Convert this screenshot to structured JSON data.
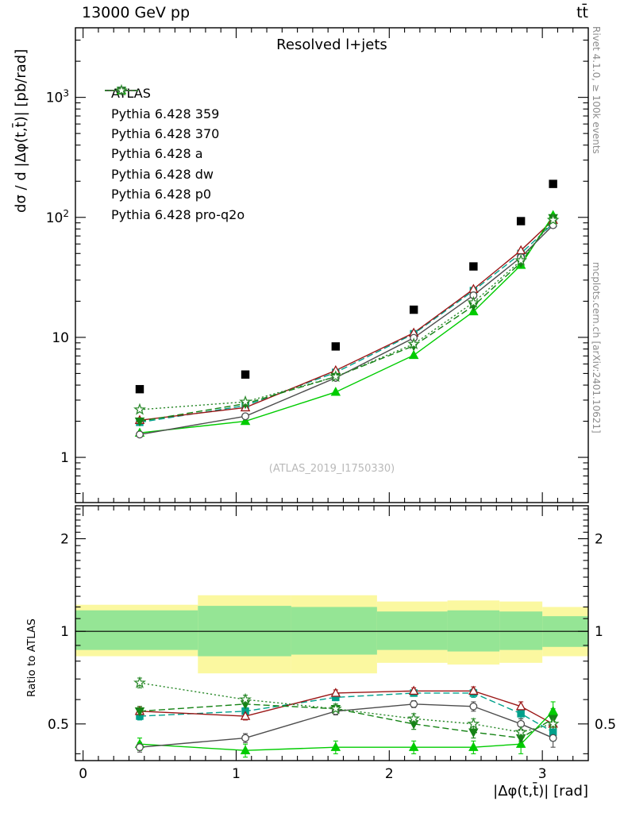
{
  "header": {
    "beam": "13000 GeV pp",
    "process": "tt̄"
  },
  "side_captions": {
    "right_top": "Rivet 4.1.0, ≥ 100k events",
    "right_bottom": "mcplots.cern.ch [arXiv:2401.10621]"
  },
  "watermark": "(ATLAS_2019_I1750330)",
  "chart_data": {
    "type": "line",
    "title": "Resolved l+jets",
    "xlabel": "|Δφ(t,t̄)| [rad]",
    "ylabel_top": "dσ / d |Δφ(t,t̄)| [pb/rad]",
    "ylabel_ratio": "Ratio to ATLAS",
    "yscale": "log",
    "xlim": [
      -0.05,
      3.3
    ],
    "ylim_top": [
      0.42,
      3800
    ],
    "ylim_ratio": [
      0.38,
      2.56
    ],
    "legend_position": "top-left",
    "x": [
      0.37,
      1.06,
      1.65,
      2.16,
      2.55,
      2.86,
      3.07
    ],
    "bin_edges": [
      0.0,
      0.75,
      1.36,
      1.92,
      2.38,
      2.72,
      3.0,
      3.1416
    ],
    "series": [
      {
        "name": "atlas",
        "label": "ATLAS",
        "color": "#000000",
        "marker": "square",
        "filled": true,
        "line": "none",
        "y": [
          3.7,
          4.9,
          8.4,
          17,
          39,
          93,
          190
        ]
      },
      {
        "name": "pythia-359",
        "label": "Pythia 6.428 359",
        "color": "#00A08B",
        "marker": "square",
        "filled": true,
        "line": "dashed",
        "y": [
          1.96,
          2.7,
          5.1,
          10.7,
          24.5,
          50,
          89
        ],
        "ratio": [
          0.53,
          0.55,
          0.61,
          0.63,
          0.63,
          0.54,
          0.47
        ],
        "ratio_err": [
          0.015,
          0.015,
          0.015,
          0.015,
          0.02,
          0.02,
          0.03
        ]
      },
      {
        "name": "pythia-370",
        "label": "Pythia 6.428 370",
        "color": "#9A1515",
        "marker": "triangle-up",
        "filled": false,
        "line": "solid",
        "y": [
          2.04,
          2.6,
          5.3,
          10.9,
          25.2,
          53,
          95
        ],
        "ratio": [
          0.55,
          0.53,
          0.63,
          0.64,
          0.64,
          0.57,
          0.5
        ],
        "ratio_err": [
          0.015,
          0.015,
          0.015,
          0.015,
          0.02,
          0.02,
          0.03
        ]
      },
      {
        "name": "pythia-a",
        "label": "Pythia 6.428 a",
        "color": "#00CC00",
        "marker": "triangle-up",
        "filled": true,
        "line": "solid",
        "y": [
          1.6,
          2.0,
          3.5,
          7.1,
          16.4,
          40,
          104
        ],
        "ratio": [
          0.43,
          0.41,
          0.42,
          0.42,
          0.42,
          0.43,
          0.55
        ],
        "ratio_err": [
          0.02,
          0.02,
          0.02,
          0.02,
          0.02,
          0.03,
          0.04
        ]
      },
      {
        "name": "pythia-dw",
        "label": "Pythia 6.428 dw",
        "color": "#158315",
        "marker": "triangle-down",
        "filled": true,
        "line": "dashed",
        "y": [
          2.0,
          2.8,
          4.7,
          8.5,
          18.3,
          42,
          99
        ],
        "ratio": [
          0.55,
          0.58,
          0.56,
          0.5,
          0.47,
          0.45,
          0.52
        ],
        "ratio_err": [
          0.02,
          0.02,
          0.02,
          0.02,
          0.02,
          0.03,
          0.04
        ]
      },
      {
        "name": "pythia-p0",
        "label": "Pythia 6.428 p0",
        "color": "#4D4D4D",
        "marker": "circle",
        "filled": false,
        "line": "solid",
        "y": [
          1.55,
          2.2,
          4.6,
          9.9,
          22.4,
          46.5,
          86
        ],
        "ratio": [
          0.42,
          0.45,
          0.55,
          0.58,
          0.57,
          0.5,
          0.45
        ],
        "ratio_err": [
          0.015,
          0.015,
          0.015,
          0.015,
          0.02,
          0.02,
          0.03
        ]
      },
      {
        "name": "pythia-pro-q2o",
        "label": "Pythia 6.428 pro-q2o",
        "color": "#2E8B2E",
        "marker": "star",
        "filled": false,
        "line": "dotted",
        "y": [
          2.5,
          2.9,
          4.7,
          8.8,
          19.5,
          43.7,
          95
        ],
        "ratio": [
          0.68,
          0.6,
          0.56,
          0.52,
          0.5,
          0.47,
          0.5
        ],
        "ratio_err": [
          0.025,
          0.02,
          0.02,
          0.02,
          0.02,
          0.03,
          0.04
        ]
      }
    ],
    "ratio_bands": {
      "yellow": {
        "color": "#FBF8A0",
        "lo": [
          0.83,
          0.73,
          0.73,
          0.79,
          0.78,
          0.79,
          0.83
        ],
        "hi": [
          1.22,
          1.31,
          1.31,
          1.25,
          1.26,
          1.25,
          1.2
        ]
      },
      "green": {
        "color": "#95E595",
        "lo": [
          0.87,
          0.83,
          0.84,
          0.87,
          0.86,
          0.87,
          0.89
        ],
        "hi": [
          1.17,
          1.21,
          1.2,
          1.16,
          1.17,
          1.16,
          1.12
        ]
      }
    },
    "axis_ticks": {
      "x_major": [
        0,
        1,
        2,
        3
      ],
      "x_major_labels": [
        "0",
        "1",
        "2",
        "3"
      ],
      "ytop_labels": [
        {
          "v": 1,
          "base": "1",
          "exp": ""
        },
        {
          "v": 10,
          "base": "10",
          "exp": ""
        },
        {
          "v": 100,
          "base": "10",
          "exp": "2"
        },
        {
          "v": 1000,
          "base": "10",
          "exp": "3"
        }
      ],
      "yratio_labels": [
        {
          "v": 0.5,
          "label": "0.5"
        },
        {
          "v": 1,
          "label": "1"
        },
        {
          "v": 2,
          "label": "2"
        }
      ]
    }
  }
}
